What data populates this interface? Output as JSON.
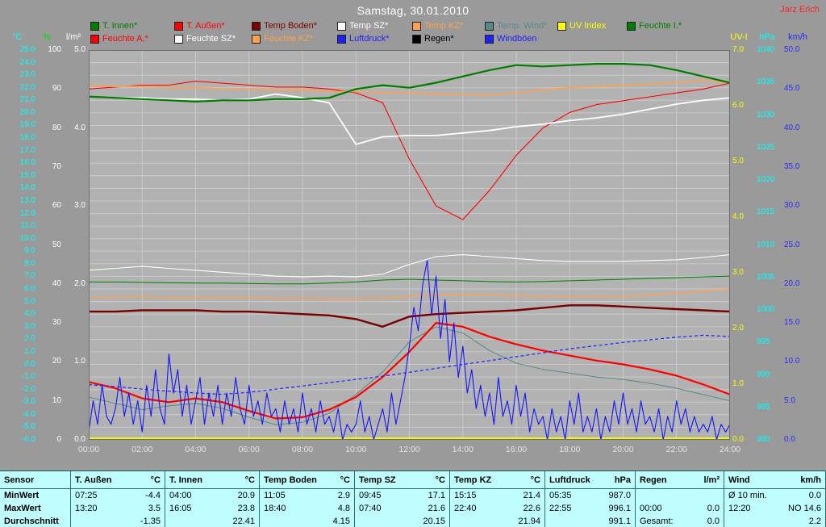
{
  "title": "Samstag, 30.01.2010",
  "watermark": "Jarz Erich",
  "legend": {
    "row1": [
      {
        "label": "T. Innen*",
        "color": "#007d00"
      },
      {
        "label": "T. Außen*",
        "color": "#ff0000"
      },
      {
        "label": "Temp Boden*",
        "color": "#7a0000"
      },
      {
        "label": "Temp SZ*",
        "color": "#ffffff"
      },
      {
        "label": "Temp KZ*",
        "color": "#ffa050"
      },
      {
        "label": "Temp. Wind*",
        "color": "#568a8a"
      },
      {
        "label": "UV Index",
        "color": "#ffff00"
      },
      {
        "label": "Feuchte I.*",
        "color": "#007d00"
      }
    ],
    "row2": [
      {
        "label": "Feuchte A.*",
        "color": "#ff0000"
      },
      {
        "label": "Feuchte SZ*",
        "color": "#ffffff"
      },
      {
        "label": "Feuchte KZ*",
        "color": "#ffa050"
      },
      {
        "label": "Luftdruck*",
        "color": "#2020ff"
      },
      {
        "label": "Regen*",
        "color": "#000000"
      },
      {
        "label": "Windböen",
        "color": "#2020ff"
      }
    ]
  },
  "chart_data": {
    "type": "line",
    "title": "Samstag, 30.01.2010",
    "x_range_hours": [
      0,
      24
    ],
    "x_ticks": [
      "00:00",
      "02:00",
      "04:00",
      "06:00",
      "08:00",
      "10:00",
      "12:00",
      "14:00",
      "16:00",
      "18:00",
      "20:00",
      "22:00",
      "24:00"
    ],
    "axes": {
      "temp": {
        "unit": "°C",
        "header_color": "#00ffff",
        "tick_color": "#00ffff",
        "min": -6,
        "max": 25,
        "ticks": [
          "25.0",
          "24.0",
          "23.0",
          "22.0",
          "21.0",
          "20.0",
          "19.0",
          "18.0",
          "17.0",
          "16.0",
          "15.0",
          "14.0",
          "13.0",
          "12.0",
          "11.0",
          "10.0",
          "9.0",
          "8.0",
          "7.0",
          "6.0",
          "5.0",
          "4.0",
          "3.0",
          "2.0",
          "1.0",
          "0.0",
          "-1.0",
          "-2.0",
          "-3.0",
          "-4.0",
          "-5.0",
          "-6.0"
        ]
      },
      "pct": {
        "unit": "%",
        "header_color": "#00e000",
        "tick_color": "#ffffff",
        "min": 0,
        "max": 100,
        "ticks": [
          "100",
          "90",
          "80",
          "70",
          "60",
          "50",
          "40",
          "30",
          "20",
          "10",
          "0"
        ]
      },
      "lm2": {
        "unit": "l/m²",
        "header_color": "#ffffff",
        "tick_color": "#ffffff",
        "min": 0,
        "max": 5,
        "ticks": [
          "5.0",
          "4.0",
          "3.0",
          "2.0",
          "1.0",
          "0.0"
        ]
      },
      "uv": {
        "unit": "UV-I",
        "header_color": "#ffff00",
        "tick_color": "#ffff00",
        "min": 0,
        "max": 7,
        "ticks": [
          "7.0",
          "6.0",
          "5.0",
          "4.0",
          "3.0",
          "2.0",
          "1.0",
          "0.0"
        ]
      },
      "hpa": {
        "unit": "hPa",
        "header_color": "#00ffff",
        "tick_color": "#00ffff",
        "min": 980,
        "max": 1040,
        "ticks": [
          "1040",
          "1035",
          "1030",
          "1025",
          "1020",
          "1015",
          "1010",
          "1005",
          "1000",
          "995",
          "990",
          "985",
          "980"
        ]
      },
      "kmh": {
        "unit": "km/h",
        "header_color": "#2a2aff",
        "tick_color": "#2a2aff",
        "min": 0,
        "max": 50,
        "ticks": [
          "50.0",
          "45.0",
          "40.0",
          "35.0",
          "30.0",
          "25.0",
          "20.0",
          "15.0",
          "10.0",
          "5.0",
          "0.0"
        ]
      }
    },
    "series": [
      {
        "name": "feuchte_i",
        "label": "Feuchte I.*",
        "axis": "pct",
        "color": "#007d00",
        "width": 1,
        "values": [
          40.5,
          40.5,
          40.4,
          40.3,
          40.2,
          40.2,
          40.1,
          40.0,
          40.0,
          40.2,
          40.5,
          41.0,
          41.2,
          41.0,
          40.8,
          40.6,
          40.5,
          40.6,
          40.8,
          41.0,
          41.2,
          41.4,
          41.6,
          41.8,
          42.0
        ]
      },
      {
        "name": "feuchte_sz",
        "label": "Feuchte SZ*",
        "axis": "pct",
        "color": "#ffffff",
        "width": 1.1,
        "values": [
          43.5,
          44.0,
          44.5,
          44.0,
          43.5,
          43.0,
          42.5,
          42.0,
          41.8,
          42.0,
          41.8,
          42.5,
          45.0,
          47.0,
          47.5,
          47.0,
          46.5,
          46.0,
          45.8,
          45.8,
          45.8,
          46.0,
          46.2,
          46.8,
          47.5
        ]
      },
      {
        "name": "feuchte_kz",
        "label": "Feuchte KZ*",
        "axis": "pct",
        "color": "#ffa050",
        "width": 1.4,
        "values": [
          36.5,
          36.6,
          36.6,
          36.5,
          36.5,
          36.4,
          36.4,
          36.3,
          36.3,
          36.2,
          36.2,
          36.3,
          36.8,
          37.2,
          37.3,
          37.2,
          37.0,
          36.9,
          36.8,
          36.8,
          36.9,
          37.2,
          37.6,
          38.2,
          38.6
        ]
      },
      {
        "name": "feuchte_a",
        "label": "Feuchte A.*",
        "axis": "pct",
        "color": "#ff0000",
        "width": 1.1,
        "values": [
          90.0,
          90.5,
          91.0,
          91.0,
          92.0,
          91.5,
          91.0,
          90.5,
          90.5,
          90.0,
          89.0,
          86.5,
          72.0,
          60.0,
          56.5,
          64.0,
          73.0,
          80.0,
          84.0,
          86.0,
          87.0,
          88.0,
          89.0,
          90.0,
          91.5
        ]
      },
      {
        "name": "temp_kz",
        "label": "Temp KZ*",
        "axis": "temp",
        "color": "#ffa050",
        "width": 1.6,
        "values": [
          22.2,
          22.1,
          22.1,
          22.0,
          22.0,
          21.9,
          21.9,
          21.8,
          21.8,
          21.7,
          21.7,
          21.6,
          21.6,
          21.5,
          21.5,
          21.4,
          21.6,
          21.8,
          22.0,
          22.1,
          22.2,
          22.3,
          22.4,
          22.6,
          22.4
        ]
      },
      {
        "name": "temp_sz",
        "label": "Temp SZ*",
        "axis": "temp",
        "color": "#ffffff",
        "width": 1.8,
        "values": [
          21.3,
          21.2,
          21.2,
          21.1,
          21.1,
          21.0,
          21.1,
          21.5,
          21.2,
          20.8,
          17.5,
          18.1,
          18.2,
          18.2,
          18.4,
          18.6,
          18.9,
          19.1,
          19.4,
          19.6,
          19.9,
          20.3,
          20.7,
          21.0,
          21.2
        ]
      },
      {
        "name": "temp_boden",
        "label": "Temp Boden*",
        "axis": "temp",
        "color": "#7a0000",
        "width": 2.4,
        "values": [
          4.2,
          4.2,
          4.3,
          4.3,
          4.3,
          4.2,
          4.2,
          4.1,
          4.0,
          3.9,
          3.6,
          3.0,
          3.8,
          4.0,
          4.1,
          4.2,
          4.3,
          4.5,
          4.7,
          4.7,
          4.6,
          4.5,
          4.4,
          4.3,
          4.2
        ]
      },
      {
        "name": "temp_wind",
        "label": "Temp. Wind*",
        "axis": "temp",
        "color": "#568a8a",
        "width": 1,
        "values": [
          -2.6,
          -3.1,
          -3.6,
          -3.3,
          -3.1,
          -3.5,
          -4.2,
          -4.8,
          -4.6,
          -3.9,
          -2.4,
          -0.6,
          1.8,
          3.0,
          2.5,
          1.1,
          0.1,
          -0.4,
          -0.7,
          -1.0,
          -1.2,
          -1.5,
          -1.9,
          -2.4,
          -2.9
        ]
      },
      {
        "name": "t_innen",
        "label": "T. Innen*",
        "axis": "temp",
        "color": "#007d00",
        "width": 2.2,
        "values": [
          21.3,
          21.2,
          21.1,
          21.0,
          20.9,
          21.0,
          21.0,
          21.1,
          21.1,
          21.2,
          21.9,
          22.2,
          22.0,
          22.4,
          22.9,
          23.4,
          23.8,
          23.7,
          23.8,
          23.9,
          23.9,
          23.8,
          23.4,
          22.9,
          22.4
        ]
      },
      {
        "name": "t_aussen",
        "label": "T. Außen*",
        "axis": "temp",
        "color": "#ff0000",
        "width": 2.2,
        "values": [
          -1.4,
          -1.9,
          -2.7,
          -3.0,
          -2.7,
          -3.0,
          -3.7,
          -4.3,
          -4.2,
          -3.6,
          -2.6,
          -1.0,
          1.0,
          3.3,
          3.0,
          2.2,
          1.6,
          1.1,
          0.7,
          0.3,
          0.0,
          -0.4,
          -0.9,
          -1.6,
          -2.4
        ]
      },
      {
        "name": "regen",
        "label": "Regen*",
        "axis": "lm2",
        "color": "#000000",
        "width": 1,
        "values": [
          0,
          0,
          0,
          0,
          0,
          0,
          0,
          0,
          0,
          0,
          0,
          0,
          0,
          0,
          0,
          0,
          0,
          0,
          0,
          0,
          0,
          0,
          0,
          0,
          0
        ]
      },
      {
        "name": "uv_index",
        "label": "UV Index",
        "axis": "uv",
        "color": "#ffff00",
        "width": 1.8,
        "dy": -2,
        "values": [
          0,
          0,
          0,
          0,
          0,
          0,
          0,
          0,
          0,
          0,
          0,
          0,
          0,
          0,
          0,
          0,
          0,
          0,
          0,
          0,
          0,
          0,
          0,
          0,
          0
        ]
      },
      {
        "name": "windboeen",
        "label": "Windböen",
        "axis": "kmh",
        "color": "#1414ff",
        "width": 1.1,
        "values": [
          1,
          5,
          2,
          7,
          3,
          2,
          4,
          8,
          3,
          6,
          2,
          5,
          1,
          7,
          3,
          9,
          4,
          2,
          11,
          6,
          9,
          3,
          7,
          2,
          5,
          8,
          2,
          6,
          3,
          7,
          2,
          6,
          3,
          8,
          4,
          2,
          7,
          3,
          5,
          2,
          6,
          3,
          4,
          1,
          5,
          2,
          4,
          1,
          6,
          2,
          4,
          1,
          5,
          2,
          3,
          1,
          4,
          0,
          2,
          1,
          2,
          5,
          1,
          3,
          0,
          2,
          4,
          1,
          6,
          2,
          5,
          8,
          12,
          17,
          14,
          20,
          23,
          16,
          21,
          13,
          18,
          10,
          15,
          8,
          12,
          6,
          9,
          4,
          7,
          3,
          6,
          2,
          8,
          3,
          5,
          2,
          7,
          3,
          6,
          1,
          4,
          2,
          3,
          0,
          4,
          1,
          3,
          0,
          5,
          2,
          6,
          1,
          3,
          1,
          4,
          0,
          3,
          1,
          5,
          2,
          6,
          2,
          4,
          1,
          5,
          2,
          3,
          1,
          4,
          0,
          3,
          1,
          5,
          2,
          4,
          1,
          3,
          1,
          2,
          1,
          3,
          0,
          2,
          1,
          2
        ]
      },
      {
        "name": "luftdruck",
        "label": "Luftdruck*",
        "axis": "hpa",
        "color": "#2020ff",
        "width": 1.2,
        "dash": "4,3",
        "values": [
          988.5,
          988.2,
          987.8,
          987.5,
          987.2,
          987.0,
          987.3,
          987.8,
          988.3,
          988.8,
          989.3,
          989.8,
          990.4,
          991.0,
          991.6,
          992.2,
          992.8,
          993.4,
          994.0,
          994.5,
          995.0,
          995.4,
          995.8,
          996.1,
          995.9
        ]
      }
    ]
  },
  "table": {
    "row_labels": [
      "Sensor",
      "MinWert",
      "MaxWert",
      "Durchschnitt"
    ],
    "columns": [
      {
        "name": "T. Außen",
        "unit": "°C",
        "min": [
          "07:25",
          "-4.4"
        ],
        "max": [
          "13:20",
          "3.5"
        ],
        "avg_label": "",
        "avg": "-1.35"
      },
      {
        "name": "T. Innen",
        "unit": "°C",
        "min": [
          "04:00",
          "20.9"
        ],
        "max": [
          "16:05",
          "23.8"
        ],
        "avg_label": "",
        "avg": "22.41"
      },
      {
        "name": "Temp Boden",
        "unit": "°C",
        "min": [
          "11:05",
          "2.9"
        ],
        "max": [
          "18:40",
          "4.8"
        ],
        "avg_label": "",
        "avg": "4.15"
      },
      {
        "name": "Temp SZ",
        "unit": "°C",
        "min": [
          "09:45",
          "17.1"
        ],
        "max": [
          "07:40",
          "21.6"
        ],
        "avg_label": "",
        "avg": "20.15"
      },
      {
        "name": "Temp KZ",
        "unit": "°C",
        "min": [
          "15:15",
          "21.4"
        ],
        "max": [
          "22:40",
          "22.6"
        ],
        "avg_label": "",
        "avg": "21.94"
      },
      {
        "name": "Luftdruck",
        "unit": "hPa",
        "min": [
          "05:35",
          "987.0"
        ],
        "max": [
          "22:55",
          "996.1"
        ],
        "avg_label": "",
        "avg": "991.1"
      },
      {
        "name": "Regen",
        "unit": "l/m²",
        "min": [
          "",
          ""
        ],
        "max": [
          "00:00",
          "0.0"
        ],
        "avg_label": "Gesamt:",
        "avg": "0.0"
      },
      {
        "name": "Wind",
        "unit": "km/h",
        "min": [
          "Ø 10 min.",
          "0.0"
        ],
        "max": [
          "12:20",
          "NO 14.6"
        ],
        "avg_label": "",
        "avg": "2.2"
      }
    ]
  }
}
